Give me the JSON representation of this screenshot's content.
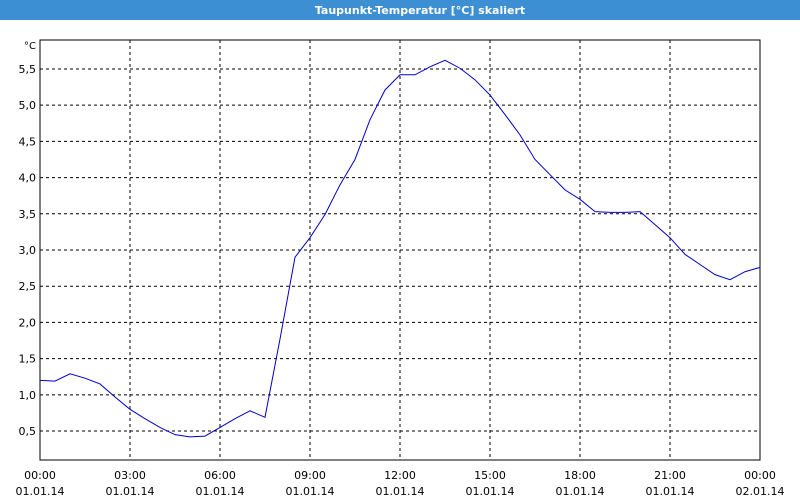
{
  "chart_data": {
    "type": "line",
    "title": "Taupunkt-Temperatur [°C] skaliert",
    "y_unit": "°C",
    "series": [
      {
        "color": "#0000c8",
        "x": [
          0,
          0.5,
          1,
          1.5,
          2,
          2.5,
          3,
          3.5,
          4,
          4.5,
          5,
          5.5,
          6,
          6.5,
          7,
          7.5,
          8,
          8.5,
          9,
          9.5,
          10,
          10.5,
          11,
          11.5,
          12,
          12.5,
          13,
          13.5,
          14,
          14.5,
          15,
          15.5,
          16,
          16.5,
          17,
          17.5,
          18,
          18.5,
          19,
          19.5,
          20,
          20.5,
          21,
          21.5,
          22,
          22.5,
          23,
          23.5,
          24
        ],
        "values": [
          1.2,
          1.19,
          1.29,
          1.23,
          1.15,
          0.97,
          0.8,
          0.67,
          0.55,
          0.45,
          0.42,
          0.43,
          0.55,
          0.67,
          0.78,
          0.69,
          1.77,
          2.9,
          3.17,
          3.49,
          3.9,
          4.25,
          4.8,
          5.21,
          5.42,
          5.42,
          5.53,
          5.62,
          5.51,
          5.35,
          5.14,
          4.87,
          4.59,
          4.25,
          4.04,
          3.83,
          3.7,
          3.53,
          3.52,
          3.52,
          3.53,
          3.35,
          3.17,
          2.94,
          2.8,
          2.66,
          2.59,
          2.7,
          2.76
        ]
      }
    ],
    "xlim": [
      0,
      24
    ],
    "xticks": [
      {
        "value": 0,
        "label": "00:00\n01.01.14"
      },
      {
        "value": 3,
        "label": "03:00\n01.01.14"
      },
      {
        "value": 6,
        "label": "06:00\n01.01.14"
      },
      {
        "value": 9,
        "label": "09:00\n01.01.14"
      },
      {
        "value": 12,
        "label": "12:00\n01.01.14"
      },
      {
        "value": 15,
        "label": "15:00\n01.01.14"
      },
      {
        "value": 18,
        "label": "18:00\n01.01.14"
      },
      {
        "value": 21,
        "label": "21:00\n01.01.14"
      },
      {
        "value": 24,
        "label": "00:00\n02.01.14"
      }
    ],
    "ylim": [
      0.1,
      5.9
    ],
    "yticks": [
      {
        "value": 0.5,
        "label": "0,5"
      },
      {
        "value": 1,
        "label": "1,0"
      },
      {
        "value": 1.5,
        "label": "1,5"
      },
      {
        "value": 2,
        "label": "2,0"
      },
      {
        "value": 2.5,
        "label": "2,5"
      },
      {
        "value": 3,
        "label": "3,0"
      },
      {
        "value": 3.5,
        "label": "3,5"
      },
      {
        "value": 4,
        "label": "4,0"
      },
      {
        "value": 4.5,
        "label": "4,5"
      },
      {
        "value": 5,
        "label": "5,0"
      },
      {
        "value": 5.5,
        "label": "5,5"
      }
    ],
    "grid": true
  }
}
